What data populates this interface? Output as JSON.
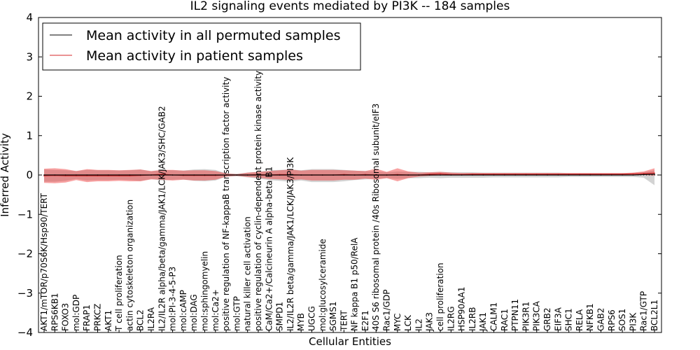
{
  "chart_data": {
    "type": "line",
    "title": "IL2 signaling events mediated by PI3K -- 184 samples",
    "xlabel": "Cellular Entities",
    "ylabel": "Inferred Activity",
    "ylim": [
      -4,
      4
    ],
    "yticks": [
      -4,
      -3,
      -2,
      -1,
      0,
      1,
      2,
      3,
      4
    ],
    "grid": false,
    "legend_position": "top-left",
    "categories": [
      "AKT1/mTOR/p70S6K/Hsp90/TERT",
      "RPS6KB1",
      "FOXO3",
      "mol:GDP",
      "FRAP1",
      "PRKCZ",
      "AKT1",
      "T cell proliferation",
      "actin cytoskeleton organization",
      "BCL2",
      "IL2RA",
      "IL2/IL2R alpha/beta/gamma/JAK1/LCK/JAK3/SHC/GAB2",
      "mol:PI-3-4-5-P3",
      "mol:cAMP",
      "mol:DAG",
      "mol:sphingomyelin",
      "mol:Ca2+",
      "positive regulation of NF-kappaB transcription factor activity",
      "mol:GTP",
      "natural killer cell activation",
      "positive regulation of cyclin-dependent protein kinase activity",
      "CaM/Ca2+/Calcineurin A alpha-beta B1",
      "SMPD1",
      "IL2/IL2R beta/gamma/JAK1/LCK/JAK3/PI3K",
      "MYB",
      "UGCG",
      "mol:glucosylceramide",
      "SGMS1",
      "TERT",
      "NF kappa B1 p50/RelA",
      "E2F1",
      "40S S6 ribosomal protein /40s Ribosomal subunit/eIF3",
      "Rac1/GDP",
      "MYC",
      "LCK",
      "IL2",
      "JAK3",
      "cell proliferation",
      "IL2RG",
      "HSP90AA1",
      "IL2RB",
      "JAK1",
      "CALM1",
      "RAC1",
      "PTPN11",
      "PIK3R1",
      "PIK3CA",
      "GRB2",
      "EIF3A",
      "SHC1",
      "RELA",
      "NFKB1",
      "GAB2",
      "RPS6",
      "SOS1",
      "PI3K",
      "Rac1/GTP",
      "BCL2L1"
    ],
    "series": [
      {
        "name": "Mean activity in all permuted samples",
        "color": "#000000",
        "values": [
          0,
          0,
          0,
          0,
          0,
          0,
          0,
          0,
          0,
          0,
          0,
          0,
          0,
          0,
          0,
          0,
          0,
          0,
          0,
          0,
          0,
          0,
          0,
          0,
          0,
          0,
          0,
          0,
          0,
          0,
          0,
          0,
          0,
          0,
          0,
          0,
          0,
          0,
          0,
          0,
          0,
          0,
          0,
          0,
          0,
          0,
          0,
          0,
          0,
          0,
          0,
          0,
          0,
          0,
          0,
          0,
          0.01,
          0.02
        ],
        "band_low": [
          -0.17,
          -0.17,
          -0.15,
          -0.1,
          -0.14,
          -0.13,
          -0.13,
          -0.12,
          -0.13,
          -0.15,
          -0.1,
          -0.14,
          -0.12,
          -0.11,
          -0.15,
          -0.16,
          -0.14,
          -0.04,
          -0.03,
          -0.06,
          -0.09,
          -0.13,
          -0.15,
          -0.17,
          -0.14,
          -0.18,
          -0.18,
          -0.18,
          -0.16,
          -0.13,
          -0.11,
          -0.09,
          -0.08,
          -0.1,
          -0.08,
          -0.08,
          -0.07,
          -0.08,
          -0.07,
          -0.07,
          -0.07,
          -0.07,
          -0.06,
          -0.06,
          -0.06,
          -0.06,
          -0.06,
          -0.06,
          -0.06,
          -0.05,
          -0.05,
          -0.05,
          -0.05,
          -0.05,
          -0.05,
          -0.05,
          -0.07,
          -0.26
        ],
        "band_high": [
          0.14,
          0.13,
          0.12,
          0.1,
          0.13,
          0.12,
          0.12,
          0.11,
          0.12,
          0.14,
          0.09,
          0.13,
          0.12,
          0.11,
          0.14,
          0.15,
          0.13,
          0.04,
          0.03,
          0.06,
          0.08,
          0.12,
          0.13,
          0.14,
          0.12,
          0.15,
          0.15,
          0.15,
          0.13,
          0.11,
          0.1,
          0.09,
          0.07,
          0.09,
          0.08,
          0.08,
          0.07,
          0.08,
          0.07,
          0.07,
          0.07,
          0.06,
          0.06,
          0.06,
          0.06,
          0.06,
          0.06,
          0.06,
          0.06,
          0.05,
          0.05,
          0.05,
          0.05,
          0.05,
          0.05,
          0.05,
          0.07,
          0.12
        ]
      },
      {
        "name": "Mean activity in patient samples",
        "color": "#d62728",
        "values": [
          -0.02,
          -0.01,
          -0.02,
          -0.02,
          -0.02,
          -0.02,
          -0.02,
          -0.02,
          -0.02,
          -0.01,
          0.0,
          0.02,
          0.0,
          -0.01,
          -0.01,
          -0.01,
          -0.01,
          0.0,
          0.0,
          0.0,
          0.01,
          0.0,
          0.01,
          0.01,
          0.0,
          0.0,
          0.0,
          0.0,
          0.01,
          0.0,
          0.01,
          0.0,
          0.0,
          0.01,
          0.0,
          0.0,
          0.02,
          0.03,
          0.01,
          0.01,
          0.02,
          0.02,
          0.02,
          0.02,
          0.02,
          0.02,
          0.02,
          0.02,
          0.02,
          0.02,
          0.02,
          0.02,
          0.02,
          0.02,
          0.02,
          0.03,
          0.04,
          0.05
        ],
        "band_low": [
          -0.2,
          -0.21,
          -0.19,
          -0.13,
          -0.18,
          -0.16,
          -0.16,
          -0.15,
          -0.16,
          -0.16,
          -0.11,
          -0.12,
          -0.14,
          -0.12,
          -0.14,
          -0.14,
          -0.12,
          -0.04,
          -0.02,
          -0.05,
          -0.07,
          -0.1,
          -0.11,
          -0.13,
          -0.11,
          -0.14,
          -0.14,
          -0.14,
          -0.12,
          -0.12,
          -0.09,
          -0.12,
          -0.08,
          -0.16,
          -0.08,
          -0.04,
          -0.02,
          -0.01,
          -0.01,
          -0.01,
          0.0,
          0.0,
          0.0,
          0.0,
          0.0,
          0.0,
          0.0,
          0.0,
          0.0,
          0.0,
          0.0,
          0.0,
          0.0,
          0.0,
          0.0,
          0.0,
          0.0,
          -0.02
        ],
        "band_high": [
          0.16,
          0.17,
          0.15,
          0.1,
          0.15,
          0.13,
          0.13,
          0.12,
          0.13,
          0.14,
          0.1,
          0.13,
          0.13,
          0.11,
          0.12,
          0.12,
          0.1,
          0.04,
          0.02,
          0.06,
          0.08,
          0.1,
          0.12,
          0.14,
          0.11,
          0.13,
          0.13,
          0.13,
          0.12,
          0.11,
          0.1,
          0.16,
          0.08,
          0.17,
          0.09,
          0.06,
          0.07,
          0.08,
          0.06,
          0.05,
          0.05,
          0.05,
          0.05,
          0.05,
          0.05,
          0.05,
          0.05,
          0.05,
          0.05,
          0.05,
          0.05,
          0.05,
          0.05,
          0.05,
          0.05,
          0.06,
          0.09,
          0.17
        ]
      }
    ]
  }
}
